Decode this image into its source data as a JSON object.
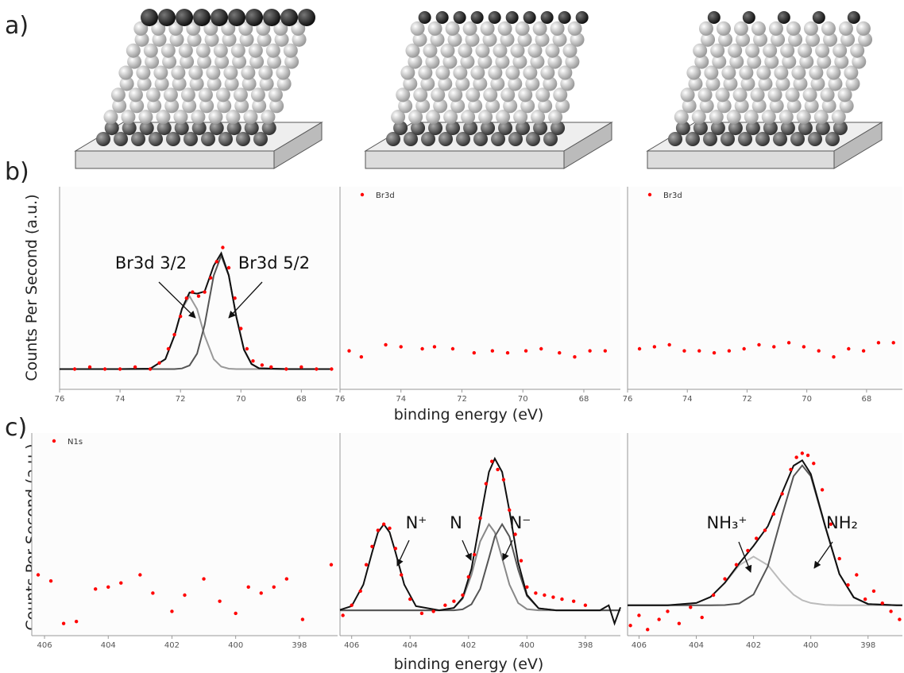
{
  "figure": {
    "panel_labels": [
      "a)",
      "b)",
      "c)"
    ],
    "y_label": "Counts Per Second (a.u.)",
    "x_label": "binding energy (eV)"
  },
  "chart_data": [
    {
      "type": "scatter",
      "xlim": [
        76,
        66.8
      ],
      "xticks": [
        76,
        74,
        72,
        70,
        68
      ],
      "ylim": [
        0,
        100
      ],
      "series": [
        {
          "mode": "markers",
          "color": "#ff0000",
          "x": [
            75.5,
            75,
            74.5,
            74,
            73.5,
            73,
            72.7,
            72.4,
            72.2,
            72,
            71.8,
            71.6,
            71.4,
            71.2,
            71,
            70.8,
            70.6,
            70.4,
            70.2,
            70,
            69.8,
            69.6,
            69.3,
            69,
            68.5,
            68,
            67.5,
            67
          ],
          "values": [
            10,
            11,
            10,
            10,
            11,
            10,
            13,
            20,
            27,
            36,
            45,
            48,
            46,
            48,
            55,
            63,
            70,
            60,
            45,
            30,
            20,
            14,
            12,
            11,
            10,
            11,
            10,
            10
          ]
        },
        {
          "mode": "line",
          "color": "#999999",
          "x": [
            76,
            74,
            73,
            72.5,
            72.2,
            71.95,
            71.7,
            71.45,
            71.2,
            70.9,
            70.65,
            70.4,
            70.15,
            69.9,
            69.65,
            69.4,
            68.5,
            67
          ],
          "values": [
            10,
            10,
            10.2,
            14.9,
            26.5,
            39.6,
            46,
            39.6,
            26.5,
            14.9,
            11.2,
            10.2,
            10,
            10,
            10,
            10,
            10,
            10
          ]
        },
        {
          "mode": "line",
          "color": "#555555",
          "x": [
            76,
            74,
            73,
            72.5,
            72.2,
            71.95,
            71.7,
            71.45,
            71.2,
            70.9,
            70.65,
            70.4,
            70.15,
            69.9,
            69.65,
            69.4,
            68.5,
            67
          ],
          "values": [
            10,
            10,
            10,
            10,
            10,
            10.3,
            11.8,
            17.6,
            31.8,
            56.1,
            66,
            56.1,
            35.6,
            19.6,
            12.5,
            10.4,
            10,
            10
          ]
        },
        {
          "mode": "line",
          "color": "#111111",
          "x": [
            76,
            74,
            73,
            72.5,
            72.2,
            71.95,
            71.7,
            71.45,
            71.2,
            70.9,
            70.65,
            70.4,
            70.15,
            69.9,
            69.65,
            69.4,
            68.5,
            67
          ],
          "values": [
            10,
            10,
            10.2,
            14.9,
            26.5,
            39.9,
            47.8,
            47.2,
            48.3,
            61,
            67.2,
            56.3,
            35.6,
            19.6,
            12.5,
            10.4,
            10,
            10
          ]
        }
      ],
      "annotations": [
        "Br3d 3/2",
        "Br3d 5/2"
      ]
    },
    {
      "type": "scatter",
      "xlim": [
        76,
        66.8
      ],
      "xticks": [
        76,
        74,
        72,
        70,
        68
      ],
      "ylim": [
        0,
        100
      ],
      "series": [
        {
          "mode": "markers",
          "name": "Br3d",
          "color": "#ff0000",
          "x": [
            75.7,
            75.3,
            74.5,
            74.0,
            73.3,
            72.9,
            72.3,
            71.6,
            71.0,
            70.5,
            69.9,
            69.4,
            68.8,
            68.3,
            67.8,
            67.3
          ],
          "values": [
            19,
            16,
            22,
            21,
            20,
            21,
            20,
            18,
            19,
            18,
            19,
            20,
            18,
            16,
            19,
            19
          ]
        }
      ]
    },
    {
      "type": "scatter",
      "xlim": [
        76,
        66.8
      ],
      "xticks": [
        76,
        74,
        72,
        70,
        68
      ],
      "ylim": [
        0,
        100
      ],
      "series": [
        {
          "mode": "markers",
          "name": "Br3d",
          "color": "#ff0000",
          "x": [
            75.6,
            75.1,
            74.6,
            74.1,
            73.6,
            73.1,
            72.6,
            72.1,
            71.6,
            71.1,
            70.6,
            70.1,
            69.6,
            69.1,
            68.6,
            68.1,
            67.6,
            67.1
          ],
          "values": [
            20,
            21,
            22,
            19,
            19,
            18,
            19,
            20,
            22,
            21,
            23,
            21,
            19,
            16,
            20,
            19,
            23,
            23
          ]
        }
      ]
    },
    {
      "type": "scatter",
      "xlim": [
        406.4,
        396.8
      ],
      "xticks": [
        406,
        404,
        402,
        400,
        398
      ],
      "ylim": [
        0,
        100
      ],
      "series": [
        {
          "mode": "markers",
          "name": "N1s",
          "color": "#ff0000",
          "x": [
            406.2,
            405.8,
            405.4,
            405.0,
            404.4,
            404.0,
            403.6,
            403.0,
            402.6,
            402.0,
            401.6,
            401.0,
            400.5,
            400.0,
            399.6,
            399.2,
            398.8,
            398.4,
            397.9,
            397.0
          ],
          "values": [
            30,
            27,
            6,
            7,
            23,
            24,
            26,
            30,
            21,
            12,
            20,
            28,
            17,
            11,
            24,
            21,
            24,
            28,
            8,
            35
          ]
        }
      ]
    },
    {
      "type": "scatter",
      "xlim": [
        406.4,
        396.8
      ],
      "xticks": [
        406,
        404,
        402,
        400,
        398
      ],
      "ylim": [
        0,
        100
      ],
      "series": [
        {
          "mode": "markers",
          "color": "#ff0000",
          "x": [
            406.3,
            406.0,
            405.7,
            405.5,
            405.3,
            405.1,
            404.9,
            404.7,
            404.5,
            404.3,
            404.0,
            403.6,
            403.2,
            402.8,
            402.5,
            402.2,
            402.0,
            401.8,
            401.6,
            401.4,
            401.2,
            401.0,
            400.8,
            400.6,
            400.4,
            400.2,
            400.0,
            399.7,
            399.4,
            399.1,
            398.8,
            398.4,
            398.0
          ],
          "values": [
            10,
            15,
            22,
            35,
            44,
            52,
            55,
            53,
            43,
            30,
            18,
            11,
            12,
            15,
            17,
            20,
            29,
            40,
            58,
            75,
            86,
            82,
            77,
            62,
            50,
            37,
            24,
            21,
            20,
            19,
            18,
            17,
            15
          ]
        },
        {
          "mode": "line",
          "color": "#888888",
          "x": [
            406.4,
            406,
            405.6,
            405.3,
            405.1,
            404.9,
            404.7,
            404.5,
            404.2,
            403.8,
            403,
            402.5,
            402.2,
            401.9,
            401.6,
            401.3,
            401.1,
            400.85,
            400.6,
            400.3,
            400,
            399.6,
            399,
            398,
            397.5,
            397.2,
            397,
            396.8
          ],
          "values": [
            12.5,
            12.5,
            12.5,
            12.5,
            12.5,
            12.5,
            12.5,
            12.5,
            12.5,
            12.5,
            12.5,
            13.7,
            18.2,
            30,
            46.5,
            55,
            51,
            38.3,
            25.2,
            16.1,
            13.1,
            12.5,
            12.5,
            12.5,
            12.5,
            12.5,
            12.5,
            12.5
          ]
        },
        {
          "mode": "line",
          "color": "#555555",
          "x": [
            406.4,
            406,
            405.6,
            405.3,
            405.1,
            404.9,
            404.7,
            404.5,
            404.2,
            403.8,
            403,
            402.5,
            402.2,
            401.9,
            401.6,
            401.3,
            401.1,
            400.85,
            400.6,
            400.3,
            400,
            399.6,
            399,
            398,
            397.5,
            397.2,
            397,
            396.8
          ],
          "values": [
            12.5,
            12.5,
            12.5,
            12.5,
            12.5,
            12.5,
            12.5,
            12.5,
            12.5,
            12.5,
            12.5,
            12.5,
            13,
            15.5,
            23.1,
            38.3,
            48.9,
            55,
            48.9,
            32.6,
            19.6,
            13.5,
            12.5,
            12.5,
            12.5,
            12.5,
            12.5,
            12.5
          ]
        },
        {
          "mode": "line",
          "color": "#111111",
          "x": [
            406.4,
            406,
            405.6,
            405.3,
            405.1,
            404.9,
            404.7,
            404.5,
            404.2,
            403.8,
            403,
            402.5,
            402.2,
            401.9,
            401.6,
            401.3,
            401.1,
            400.85,
            400.6,
            400.3,
            400,
            399.6,
            399,
            398,
            397.5,
            397.2,
            397,
            396.8
          ],
          "values": [
            12.7,
            14.6,
            25.2,
            41.1,
            51,
            55,
            51,
            41.1,
            25.2,
            14.6,
            12.5,
            13.7,
            18.7,
            33,
            57.1,
            80.8,
            87.4,
            80.8,
            61.6,
            36.2,
            20.2,
            13.5,
            12.5,
            12.5,
            12.5,
            15,
            6,
            14
          ]
        }
      ],
      "annotations": [
        "N⁺",
        "N",
        "N⁻"
      ]
    },
    {
      "type": "scatter",
      "xlim": [
        406.4,
        396.8
      ],
      "xticks": [
        406,
        404,
        402,
        400,
        398
      ],
      "ylim": [
        0,
        100
      ],
      "series": [
        {
          "mode": "markers",
          "color": "#ff0000",
          "x": [
            406.3,
            406.0,
            405.7,
            405.3,
            405.0,
            404.6,
            404.2,
            403.8,
            403.4,
            403.0,
            402.6,
            402.2,
            401.9,
            401.6,
            401.3,
            401.0,
            400.7,
            400.5,
            400.3,
            400.1,
            399.9,
            399.6,
            399.3,
            399.0,
            398.7,
            398.4,
            398.1,
            397.8,
            397.5,
            397.2,
            396.9
          ],
          "values": [
            5,
            10,
            3,
            8,
            12,
            6,
            14,
            9,
            20,
            28,
            35,
            42,
            48,
            52,
            60,
            70,
            82,
            88,
            90,
            89,
            85,
            72,
            55,
            38,
            25,
            30,
            18,
            22,
            16,
            12,
            8
          ]
        },
        {
          "mode": "line",
          "color": "#bbbbbb",
          "x": [
            406.4,
            405,
            404,
            403.5,
            403,
            402.5,
            402,
            401.5,
            401,
            400.6,
            400.3,
            400,
            399.5,
            399,
            398.5,
            398,
            397,
            396.8
          ],
          "values": [
            15,
            15,
            16.1,
            19.1,
            26,
            34.8,
            39,
            34.8,
            26,
            20.2,
            17.5,
            16.1,
            15.2,
            15,
            15,
            15,
            15,
            15
          ]
        },
        {
          "mode": "line",
          "color": "#555555",
          "x": [
            406.4,
            405,
            404,
            403.5,
            403,
            402.5,
            402,
            401.5,
            401,
            400.6,
            400.3,
            400,
            399.5,
            399,
            398.5,
            398,
            397,
            396.8
          ],
          "values": [
            15,
            15,
            15,
            15,
            15.1,
            15.9,
            20.3,
            34.2,
            59.6,
            78.7,
            84,
            78.7,
            54,
            30.4,
            18.9,
            15.6,
            15,
            15
          ]
        },
        {
          "mode": "line",
          "color": "#111111",
          "x": [
            406.4,
            405,
            404,
            403.5,
            403,
            402.5,
            402,
            401.5,
            401,
            400.6,
            400.3,
            400,
            399.5,
            399,
            398.5,
            398,
            397,
            396.8
          ],
          "values": [
            15,
            15,
            16.1,
            19.1,
            26.1,
            35.7,
            44.3,
            54,
            70.6,
            83.9,
            86.5,
            79.8,
            54.2,
            30.4,
            18.9,
            15.6,
            15,
            15
          ]
        }
      ],
      "annotations": [
        "NH₃⁺",
        "NH₂"
      ]
    }
  ]
}
